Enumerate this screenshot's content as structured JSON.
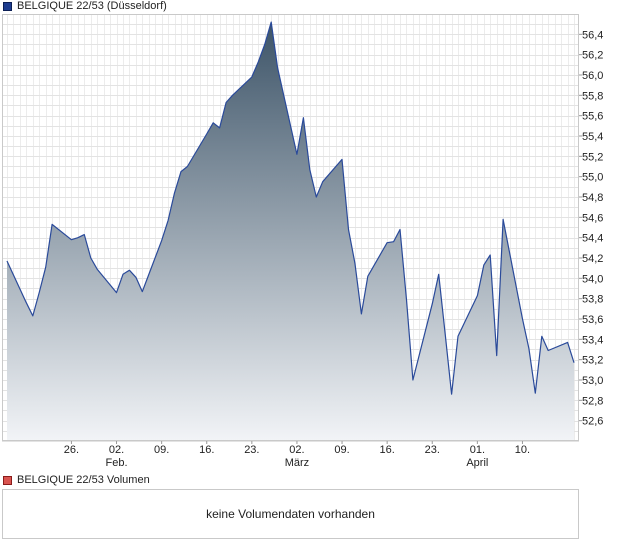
{
  "legend": {
    "price_label": "BELGIQUE 22/53 (Düsseldorf)",
    "volume_label": "BELGIQUE 22/53 Volumen",
    "price_color": "#1d3c8f",
    "volume_color": "#d9534f"
  },
  "volume_panel": {
    "message": "keine Volumendaten vorhanden"
  },
  "chart_data": {
    "type": "area",
    "title": "BELGIQUE 22/53 (Düsseldorf)",
    "xlabel": "",
    "ylabel": "",
    "ylim": [
      52.4,
      56.6
    ],
    "y_ticks": [
      "56,4",
      "56,2",
      "56,0",
      "55,8",
      "55,6",
      "55,4",
      "55,2",
      "55,0",
      "54,8",
      "54,6",
      "54,4",
      "54,2",
      "54,0",
      "53,8",
      "53,6",
      "53,4",
      "53,2",
      "53,0",
      "52,8",
      "52,6"
    ],
    "x_tick_labels": [
      {
        "day": "26.",
        "month": ""
      },
      {
        "day": "02.",
        "month": "Feb."
      },
      {
        "day": "09.",
        "month": ""
      },
      {
        "day": "16.",
        "month": ""
      },
      {
        "day": "23.",
        "month": ""
      },
      {
        "day": "02.",
        "month": "März"
      },
      {
        "day": "09.",
        "month": ""
      },
      {
        "day": "16.",
        "month": ""
      },
      {
        "day": "23.",
        "month": ""
      },
      {
        "day": "01.",
        "month": "April"
      },
      {
        "day": "10.",
        "month": ""
      }
    ],
    "grid": true,
    "series": [
      {
        "name": "BELGIQUE 22/53",
        "line_color": "#2a4a9a",
        "area_top_color": "#3d5468",
        "area_bottom_color": "#f2f4f7",
        "points": [
          [
            "2025-01-17",
            54.17
          ],
          [
            "2025-01-20",
            53.76
          ],
          [
            "2025-01-21",
            53.63
          ],
          [
            "2025-01-22",
            53.86
          ],
          [
            "2025-01-23",
            54.11
          ],
          [
            "2025-01-24",
            54.53
          ],
          [
            "2025-01-27",
            54.38
          ],
          [
            "2025-01-28",
            54.4
          ],
          [
            "2025-01-29",
            54.43
          ],
          [
            "2025-01-30",
            54.2
          ],
          [
            "2025-01-31",
            54.09
          ],
          [
            "2025-02-03",
            53.86
          ],
          [
            "2025-02-04",
            54.04
          ],
          [
            "2025-02-05",
            54.08
          ],
          [
            "2025-02-06",
            54.01
          ],
          [
            "2025-02-07",
            53.87
          ],
          [
            "2025-02-10",
            54.37
          ],
          [
            "2025-02-11",
            54.57
          ],
          [
            "2025-02-12",
            54.84
          ],
          [
            "2025-02-13",
            55.05
          ],
          [
            "2025-02-14",
            55.1
          ],
          [
            "2025-02-17",
            55.42
          ],
          [
            "2025-02-18",
            55.53
          ],
          [
            "2025-02-19",
            55.48
          ],
          [
            "2025-02-20",
            55.73
          ],
          [
            "2025-02-21",
            55.8
          ],
          [
            "2025-02-24",
            55.98
          ],
          [
            "2025-02-25",
            56.13
          ],
          [
            "2025-02-26",
            56.3
          ],
          [
            "2025-02-27",
            56.52
          ],
          [
            "2025-02-28",
            56.07
          ],
          [
            "2025-03-03",
            55.22
          ],
          [
            "2025-03-04",
            55.58
          ],
          [
            "2025-03-05",
            55.07
          ],
          [
            "2025-03-06",
            54.8
          ],
          [
            "2025-03-07",
            54.95
          ],
          [
            "2025-03-10",
            55.17
          ],
          [
            "2025-03-11",
            54.48
          ],
          [
            "2025-03-12",
            54.15
          ],
          [
            "2025-03-13",
            53.65
          ],
          [
            "2025-03-14",
            54.02
          ],
          [
            "2025-03-17",
            54.35
          ],
          [
            "2025-03-18",
            54.36
          ],
          [
            "2025-03-19",
            54.48
          ],
          [
            "2025-03-20",
            53.79
          ],
          [
            "2025-03-21",
            53.0
          ],
          [
            "2025-03-24",
            53.75
          ],
          [
            "2025-03-25",
            54.04
          ],
          [
            "2025-03-26",
            53.46
          ],
          [
            "2025-03-27",
            52.86
          ],
          [
            "2025-03-28",
            53.43
          ],
          [
            "2025-03-31",
            53.83
          ],
          [
            "2025-04-01",
            54.13
          ],
          [
            "2025-04-02",
            54.23
          ],
          [
            "2025-04-03",
            53.24
          ],
          [
            "2025-04-04",
            54.58
          ],
          [
            "2025-04-07",
            53.6
          ],
          [
            "2025-04-08",
            53.31
          ],
          [
            "2025-04-09",
            52.87
          ],
          [
            "2025-04-10",
            53.43
          ],
          [
            "2025-04-11",
            53.29
          ],
          [
            "2025-04-14",
            53.37
          ],
          [
            "2025-04-15",
            53.17
          ]
        ]
      }
    ]
  }
}
